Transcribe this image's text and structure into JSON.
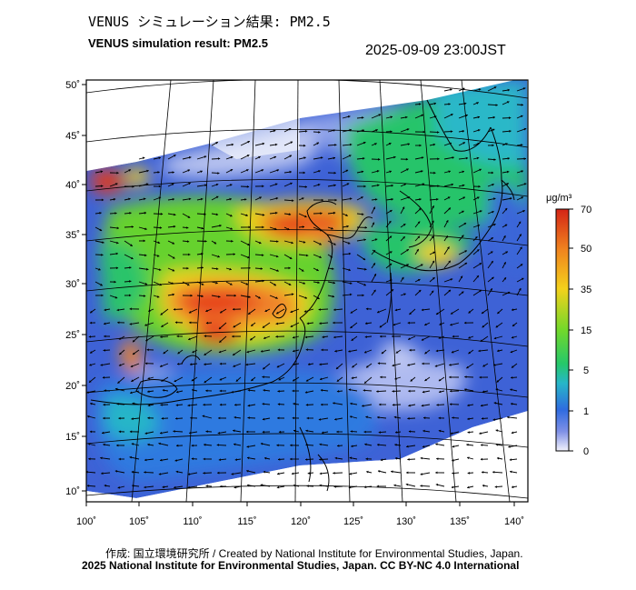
{
  "title_jp": "VENUS シミュレーション結果: PM2.5",
  "title_en": "VENUS simulation result: PM2.5",
  "timestamp": "2025-09-09 23:00JST",
  "map": {
    "lon_ticks": [
      "100˚",
      "105˚",
      "110˚",
      "115˚",
      "120˚",
      "125˚",
      "130˚",
      "135˚",
      "140˚"
    ],
    "lat_ticks": [
      "50˚",
      "45˚",
      "40˚",
      "35˚",
      "30˚",
      "25˚",
      "20˚",
      "15˚",
      "10˚"
    ]
  },
  "colorbar": {
    "unit": "μg/m³",
    "labels": [
      "70",
      "50",
      "35",
      "15",
      "5",
      "1",
      "0"
    ],
    "colors": [
      "#e0301e",
      "#f08a24",
      "#f5d21e",
      "#7fdc2a",
      "#25c86a",
      "#27b6c8",
      "#2f6be0",
      "#3a56d8",
      "#9aa8ec",
      "#f0f0fa"
    ]
  },
  "credit": "作成: 国立環境研究所 / Created by National Institute for Environmental Studies, Japan.",
  "copyright": "2025 National Institute for Environmental Studies, Japan. CC BY-NC 4.0 International"
}
